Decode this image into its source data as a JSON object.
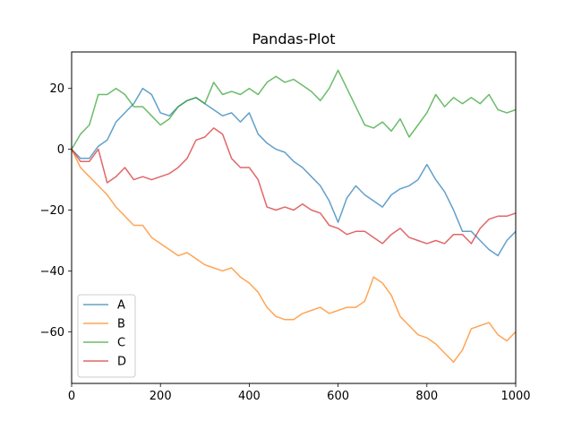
{
  "chart_data": {
    "type": "line",
    "title": "Pandas-Plot",
    "xlabel": "",
    "ylabel": "",
    "xlim": [
      0,
      1000
    ],
    "ylim": [
      -77,
      32
    ],
    "xticks": [
      0,
      200,
      400,
      600,
      800,
      1000
    ],
    "yticks": [
      -60,
      -40,
      -20,
      0,
      20
    ],
    "grid": false,
    "legend_position": "lower-left",
    "line_alpha": 0.7,
    "series": [
      {
        "name": "A",
        "color": "#1f77b4",
        "points": [
          [
            0,
            0
          ],
          [
            20,
            -3
          ],
          [
            40,
            -3
          ],
          [
            60,
            1
          ],
          [
            80,
            3
          ],
          [
            100,
            9
          ],
          [
            120,
            12
          ],
          [
            140,
            15
          ],
          [
            160,
            20
          ],
          [
            180,
            18
          ],
          [
            200,
            12
          ],
          [
            220,
            11
          ],
          [
            240,
            14
          ],
          [
            260,
            16
          ],
          [
            280,
            17
          ],
          [
            300,
            15
          ],
          [
            320,
            13
          ],
          [
            340,
            11
          ],
          [
            360,
            12
          ],
          [
            380,
            9
          ],
          [
            400,
            12
          ],
          [
            420,
            5
          ],
          [
            440,
            2
          ],
          [
            460,
            0
          ],
          [
            480,
            -1
          ],
          [
            500,
            -4
          ],
          [
            520,
            -6
          ],
          [
            540,
            -9
          ],
          [
            560,
            -12
          ],
          [
            580,
            -17
          ],
          [
            600,
            -24
          ],
          [
            620,
            -16
          ],
          [
            640,
            -12
          ],
          [
            660,
            -15
          ],
          [
            680,
            -17
          ],
          [
            700,
            -19
          ],
          [
            720,
            -15
          ],
          [
            740,
            -13
          ],
          [
            760,
            -12
          ],
          [
            780,
            -10
          ],
          [
            800,
            -5
          ],
          [
            820,
            -10
          ],
          [
            840,
            -14
          ],
          [
            860,
            -20
          ],
          [
            880,
            -27
          ],
          [
            900,
            -27
          ],
          [
            920,
            -30
          ],
          [
            940,
            -33
          ],
          [
            960,
            -35
          ],
          [
            980,
            -30
          ],
          [
            1000,
            -27
          ]
        ]
      },
      {
        "name": "B",
        "color": "#ff7f0e",
        "points": [
          [
            0,
            0
          ],
          [
            20,
            -6
          ],
          [
            40,
            -9
          ],
          [
            60,
            -12
          ],
          [
            80,
            -15
          ],
          [
            100,
            -19
          ],
          [
            120,
            -22
          ],
          [
            140,
            -25
          ],
          [
            160,
            -25
          ],
          [
            180,
            -29
          ],
          [
            200,
            -31
          ],
          [
            220,
            -33
          ],
          [
            240,
            -35
          ],
          [
            260,
            -34
          ],
          [
            280,
            -36
          ],
          [
            300,
            -38
          ],
          [
            320,
            -39
          ],
          [
            340,
            -40
          ],
          [
            360,
            -39
          ],
          [
            380,
            -42
          ],
          [
            400,
            -44
          ],
          [
            420,
            -47
          ],
          [
            440,
            -52
          ],
          [
            460,
            -55
          ],
          [
            480,
            -56
          ],
          [
            500,
            -56
          ],
          [
            520,
            -54
          ],
          [
            540,
            -53
          ],
          [
            560,
            -52
          ],
          [
            580,
            -54
          ],
          [
            600,
            -53
          ],
          [
            620,
            -52
          ],
          [
            640,
            -52
          ],
          [
            660,
            -50
          ],
          [
            680,
            -42
          ],
          [
            700,
            -44
          ],
          [
            720,
            -48
          ],
          [
            740,
            -55
          ],
          [
            760,
            -58
          ],
          [
            780,
            -61
          ],
          [
            800,
            -62
          ],
          [
            820,
            -64
          ],
          [
            840,
            -67
          ],
          [
            860,
            -70
          ],
          [
            880,
            -66
          ],
          [
            900,
            -59
          ],
          [
            920,
            -58
          ],
          [
            940,
            -57
          ],
          [
            960,
            -61
          ],
          [
            980,
            -63
          ],
          [
            1000,
            -60
          ]
        ]
      },
      {
        "name": "C",
        "color": "#2ca02c",
        "points": [
          [
            0,
            0
          ],
          [
            20,
            5
          ],
          [
            40,
            8
          ],
          [
            60,
            18
          ],
          [
            80,
            18
          ],
          [
            100,
            20
          ],
          [
            120,
            18
          ],
          [
            140,
            14
          ],
          [
            160,
            14
          ],
          [
            180,
            11
          ],
          [
            200,
            8
          ],
          [
            220,
            10
          ],
          [
            240,
            14
          ],
          [
            260,
            16
          ],
          [
            280,
            17
          ],
          [
            300,
            15
          ],
          [
            320,
            22
          ],
          [
            340,
            18
          ],
          [
            360,
            19
          ],
          [
            380,
            18
          ],
          [
            400,
            20
          ],
          [
            420,
            18
          ],
          [
            440,
            22
          ],
          [
            460,
            24
          ],
          [
            480,
            22
          ],
          [
            500,
            23
          ],
          [
            520,
            21
          ],
          [
            540,
            19
          ],
          [
            560,
            16
          ],
          [
            580,
            20
          ],
          [
            600,
            26
          ],
          [
            620,
            20
          ],
          [
            640,
            14
          ],
          [
            660,
            8
          ],
          [
            680,
            7
          ],
          [
            700,
            9
          ],
          [
            720,
            6
          ],
          [
            740,
            10
          ],
          [
            760,
            4
          ],
          [
            780,
            8
          ],
          [
            800,
            12
          ],
          [
            820,
            18
          ],
          [
            840,
            14
          ],
          [
            860,
            17
          ],
          [
            880,
            15
          ],
          [
            900,
            17
          ],
          [
            920,
            15
          ],
          [
            940,
            18
          ],
          [
            960,
            13
          ],
          [
            980,
            12
          ],
          [
            1000,
            13
          ]
        ]
      },
      {
        "name": "D",
        "color": "#d62728",
        "points": [
          [
            0,
            0
          ],
          [
            20,
            -4
          ],
          [
            40,
            -4
          ],
          [
            60,
            0
          ],
          [
            80,
            -11
          ],
          [
            100,
            -9
          ],
          [
            120,
            -6
          ],
          [
            140,
            -10
          ],
          [
            160,
            -9
          ],
          [
            180,
            -10
          ],
          [
            200,
            -9
          ],
          [
            220,
            -8
          ],
          [
            240,
            -6
          ],
          [
            260,
            -3
          ],
          [
            280,
            3
          ],
          [
            300,
            4
          ],
          [
            320,
            7
          ],
          [
            340,
            5
          ],
          [
            360,
            -3
          ],
          [
            380,
            -6
          ],
          [
            400,
            -6
          ],
          [
            420,
            -10
          ],
          [
            440,
            -19
          ],
          [
            460,
            -20
          ],
          [
            480,
            -19
          ],
          [
            500,
            -20
          ],
          [
            520,
            -18
          ],
          [
            540,
            -20
          ],
          [
            560,
            -21
          ],
          [
            580,
            -25
          ],
          [
            600,
            -26
          ],
          [
            620,
            -28
          ],
          [
            640,
            -27
          ],
          [
            660,
            -27
          ],
          [
            680,
            -29
          ],
          [
            700,
            -31
          ],
          [
            720,
            -28
          ],
          [
            740,
            -26
          ],
          [
            760,
            -29
          ],
          [
            780,
            -30
          ],
          [
            800,
            -31
          ],
          [
            820,
            -30
          ],
          [
            840,
            -31
          ],
          [
            860,
            -28
          ],
          [
            880,
            -28
          ],
          [
            900,
            -31
          ],
          [
            920,
            -26
          ],
          [
            940,
            -23
          ],
          [
            960,
            -22
          ],
          [
            980,
            -22
          ],
          [
            1000,
            -21
          ]
        ]
      }
    ]
  }
}
